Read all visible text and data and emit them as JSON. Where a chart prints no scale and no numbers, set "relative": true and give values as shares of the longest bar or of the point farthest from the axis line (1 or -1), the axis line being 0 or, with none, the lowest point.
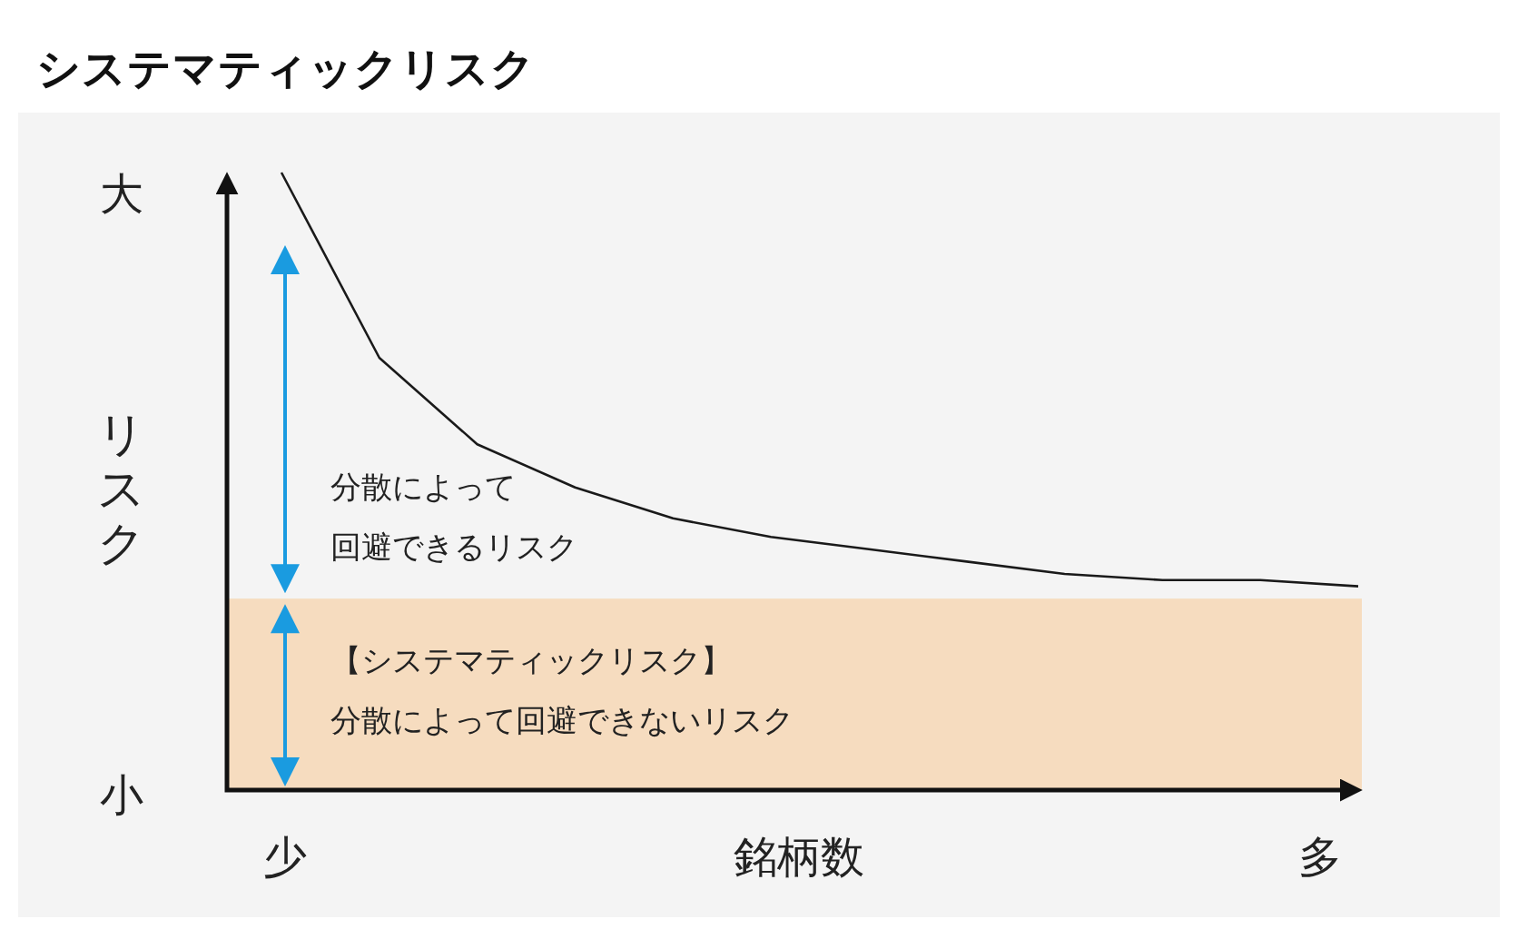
{
  "chart_data": {
    "type": "line",
    "title": "システマティックリスク",
    "xlabel": "銘柄数",
    "ylabel": "リスク",
    "relative": true,
    "categories": [
      null,
      null,
      null,
      null,
      null,
      null,
      null,
      null,
      null,
      null,
      null,
      null
    ],
    "series": [
      {
        "color": "#1a1a1a",
        "values": [
          1,
          0.7,
          0.56,
          0.49,
          0.44,
          0.41,
          0.39,
          0.37,
          0.35,
          0.34,
          0.34,
          0.33
        ]
      }
    ],
    "bands": [
      {
        "axis": "y",
        "from": 0,
        "to": 0.31,
        "color": "#f6dcbf",
        "label": "【システマティックリスク】"
      }
    ],
    "annotations": [
      "分散によって",
      "回避できるリスク",
      "大",
      "小",
      "少",
      "多",
      "分散によって回避できないリスク"
    ]
  }
}
